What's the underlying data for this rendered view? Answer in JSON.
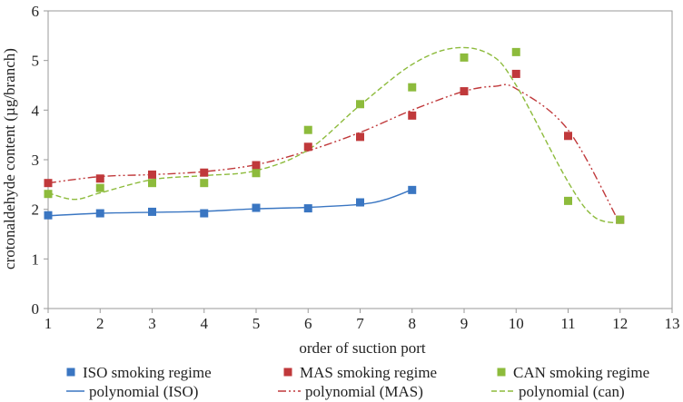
{
  "chart_data": {
    "type": "scatter",
    "title": "",
    "xlabel": "order of suction port",
    "ylabel": "crotonaldehyde content (µg/branch)",
    "xlim": [
      1,
      13
    ],
    "ylim": [
      0,
      6
    ],
    "x_ticks": [
      1,
      2,
      3,
      4,
      5,
      6,
      7,
      8,
      9,
      10,
      11,
      12,
      13
    ],
    "y_ticks": [
      0,
      1,
      2,
      3,
      4,
      5,
      6
    ],
    "grid": false,
    "legend_position": "bottom",
    "series": [
      {
        "name": "ISO smoking regime",
        "color": "#3a76c2",
        "marker": "square",
        "x": [
          1,
          2,
          3,
          4,
          5,
          6,
          7,
          8
        ],
        "y": [
          1.88,
          1.92,
          1.95,
          1.92,
          2.03,
          2.02,
          2.14,
          2.39
        ]
      },
      {
        "name": "MAS smoking regime",
        "color": "#c0393b",
        "marker": "square",
        "x": [
          1,
          2,
          3,
          4,
          5,
          6,
          7,
          8,
          9,
          10,
          11,
          12
        ],
        "y": [
          2.53,
          2.62,
          2.7,
          2.74,
          2.89,
          3.26,
          3.46,
          3.89,
          4.38,
          4.73,
          3.48,
          1.79
        ]
      },
      {
        "name": "CAN smoking regime",
        "color": "#8dbb3c",
        "marker": "square",
        "x": [
          1,
          2,
          3,
          4,
          5,
          6,
          7,
          8,
          9,
          10,
          11,
          12
        ],
        "y": [
          2.31,
          2.43,
          2.53,
          2.53,
          2.73,
          3.6,
          4.12,
          4.46,
          5.06,
          5.17,
          2.17,
          1.79
        ]
      }
    ],
    "trendlines": [
      {
        "name": "polynomial (ISO)",
        "color": "#3a76c2",
        "dash": "solid",
        "x": [
          1,
          2,
          3,
          4,
          5,
          6,
          7,
          7.5,
          8
        ],
        "y": [
          1.87,
          1.92,
          1.94,
          1.96,
          2.01,
          2.04,
          2.1,
          2.2,
          2.4
        ]
      },
      {
        "name": "polynomial (MAS)",
        "color": "#c0393b",
        "dash": "dash-dot-dot",
        "x": [
          1,
          2,
          3,
          4,
          5,
          6,
          7,
          8,
          9,
          9.6,
          10,
          11,
          12
        ],
        "y": [
          2.53,
          2.66,
          2.7,
          2.76,
          2.9,
          3.18,
          3.55,
          4.0,
          4.38,
          4.48,
          4.43,
          3.6,
          1.7
        ]
      },
      {
        "name": "polynomial (can)",
        "color": "#8dbb3c",
        "dash": "dashed",
        "x": [
          1,
          1.5,
          2,
          3,
          4,
          5,
          6,
          7,
          8,
          8.8,
          9.5,
          10,
          11,
          11.5,
          12
        ],
        "y": [
          2.33,
          2.2,
          2.33,
          2.6,
          2.68,
          2.78,
          3.2,
          4.1,
          4.92,
          5.25,
          5.12,
          4.5,
          2.55,
          1.85,
          1.72
        ]
      }
    ]
  }
}
